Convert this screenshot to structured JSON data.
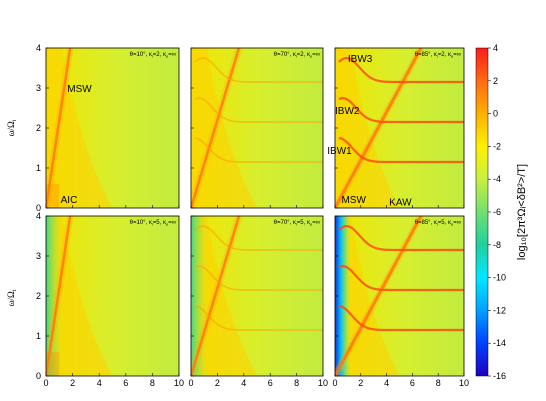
{
  "chart_data": {
    "type": "heatmap",
    "xlim": [
      0,
      10
    ],
    "ylim": [
      0,
      4
    ],
    "xticks": [
      "0",
      "2",
      "4",
      "6",
      "8",
      "10"
    ],
    "yticks": [
      "0",
      "1",
      "2",
      "3",
      "4"
    ],
    "ylabel": "ω/Ω",
    "ylabel_sub": "i",
    "colorbar": {
      "label": "log₁₀[2π³Ωᵢ<δB²>/T]",
      "range": [
        -16,
        4
      ],
      "ticks": [
        "4",
        "2",
        "0",
        "-2",
        "-4",
        "-6",
        "-8",
        "-10",
        "-12",
        "-14",
        "-16"
      ],
      "colors": [
        "#ff1a1a",
        "#ff6a14",
        "#ffb000",
        "#fff000",
        "#c8f040",
        "#70e070",
        "#20d0a0",
        "#00e8ff",
        "#00a0ff",
        "#0040ff",
        "#2000c0"
      ]
    },
    "panels": [
      {
        "label": "θ=10°, κ",
        "sub1": "i",
        "mid": "=2, κ",
        "sub2": "e",
        "end": "=∞",
        "theta": 10,
        "kappa_i": 2,
        "annotations": [
          {
            "text": "MSW",
            "x": 1.6,
            "y": 2.9
          },
          {
            "text": "AIC",
            "x": 1.1,
            "y": 0.12
          }
        ]
      },
      {
        "label": "θ=70°, κ",
        "sub1": "i",
        "mid": "=2, κ",
        "sub2": "e",
        "end": "=∞",
        "theta": 70,
        "kappa_i": 2,
        "annotations": []
      },
      {
        "label": "θ=85°, κ",
        "sub1": "i",
        "mid": "=2, κ",
        "sub2": "e",
        "end": "=∞",
        "theta": 85,
        "kappa_i": 2,
        "annotations": [
          {
            "text": "IBW3",
            "x": 1.0,
            "y": 3.65
          },
          {
            "text": "IBW2",
            "x": 0.0,
            "y": 2.35
          },
          {
            "text": "IBW1",
            "x": -0.6,
            "y": 1.35
          },
          {
            "text": "MSW",
            "x": 0.5,
            "y": 0.12
          },
          {
            "text": "KAW",
            "x": 4.2,
            "y": 0.06
          }
        ]
      },
      {
        "label": "θ=10°, κ",
        "sub1": "i",
        "mid": "=5, κ",
        "sub2": "e",
        "end": "=∞",
        "theta": 10,
        "kappa_i": 5,
        "annotations": []
      },
      {
        "label": "θ=70°, κ",
        "sub1": "i",
        "mid": "=5, κ",
        "sub2": "e",
        "end": "=∞",
        "theta": 70,
        "kappa_i": 5,
        "annotations": []
      },
      {
        "label": "θ=85°, κ",
        "sub1": "i",
        "mid": "=5, κ",
        "sub2": "e",
        "end": "=∞",
        "theta": 85,
        "kappa_i": 5,
        "annotations": []
      }
    ]
  }
}
